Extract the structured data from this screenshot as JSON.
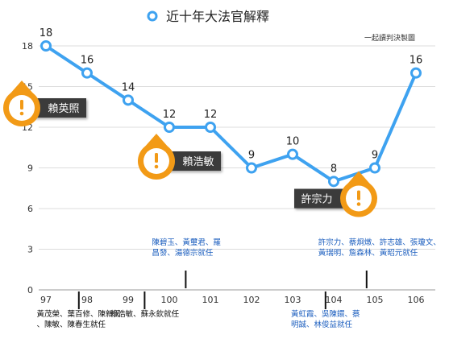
{
  "chart_data": {
    "type": "line",
    "title": "近十年大法官解釋",
    "credit": "一起讀判決製圖",
    "x": [
      "97",
      "98",
      "99",
      "100",
      "101",
      "102",
      "103",
      "104",
      "105",
      "106"
    ],
    "values": [
      18,
      16,
      14,
      12,
      12,
      9,
      10,
      8,
      9,
      16
    ],
    "ylim": [
      0,
      18
    ],
    "yticks": [
      "0",
      "3",
      "6",
      "9",
      "12",
      "15",
      "18"
    ],
    "grid": true,
    "colors": {
      "line": "#3ea2f0",
      "accent": "#f29a16",
      "callout_bg": "#3a3a3a",
      "annotation": "#1d5fbf"
    },
    "callouts": [
      {
        "name": "賴英照",
        "x": "97",
        "side": "right"
      },
      {
        "name": "賴浩敏",
        "x": "100",
        "side": "right"
      },
      {
        "name": "許宗力",
        "x": "105",
        "side": "left"
      }
    ],
    "annotations": [
      {
        "x": "97.8",
        "position": "below",
        "lines": [
          "黃茂榮、葉百修、陳新民",
          "、陳敏、陳春生就任"
        ]
      },
      {
        "x": "99.4",
        "position": "below",
        "lines": [
          "賴浩敏、蘇永欽就任"
        ]
      },
      {
        "x": "100.4",
        "position": "above",
        "lines": [
          "陳碧玉、黃璽君、羅",
          "昌發、湯德宗就任"
        ]
      },
      {
        "x": "103.8",
        "position": "below",
        "lines": [
          "黃虹霞、吳陳鐶、蔡",
          "明誠、林俊益就任"
        ]
      },
      {
        "x": "104.8",
        "position": "above",
        "lines": [
          "許宗力、蔡烱燉、許志雄、張瓊文、",
          "黃瑞明、詹森林、黃昭元就任"
        ]
      }
    ]
  }
}
